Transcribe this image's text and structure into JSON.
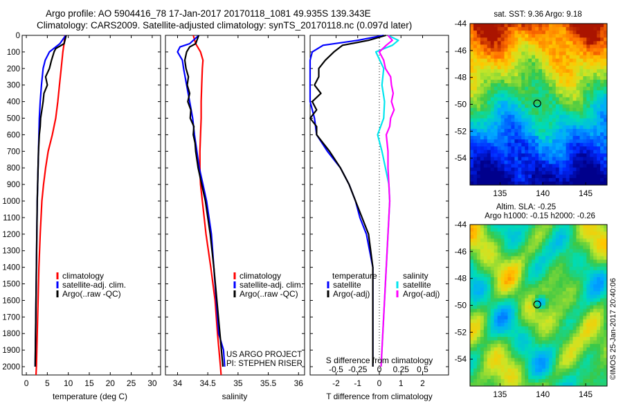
{
  "header": {
    "line1": "Argo profile: AO 5904416_78 17-Jan-2017 20170118_1081 49.935S 139.343E",
    "line2": "Climatology: CARS2009. Satellite-adjusted climatology: synTS_20170118.nc (0.097d later)"
  },
  "colors": {
    "climatology": "#ff0000",
    "satellite": "#0000ff",
    "argo": "#000000",
    "argo_salinity_diff": "#ff00ff",
    "satellite_salinity_diff": "#00e5ee"
  },
  "chart_data": [
    {
      "type": "line",
      "panel": "temperature",
      "xlabel": "temperature (deg C)",
      "xlim": [
        -1,
        32
      ],
      "xticks": [
        "0",
        "5",
        "10",
        "15",
        "20",
        "25",
        "30"
      ],
      "ylim": [
        0,
        2050
      ],
      "yticks": [
        "0",
        "100",
        "200",
        "300",
        "400",
        "500",
        "600",
        "700",
        "800",
        "900",
        "1000",
        "1100",
        "1200",
        "1300",
        "1400",
        "1500",
        "1600",
        "1700",
        "1800",
        "1900",
        "2000"
      ],
      "legend": [
        "climatology",
        "satellite-adj. clim.",
        "Argo(..raw -QC)"
      ],
      "series": [
        {
          "name": "climatology",
          "depth": [
            0,
            50,
            100,
            200,
            300,
            400,
            500,
            600,
            700,
            800,
            900,
            1000,
            1200,
            1400,
            1600,
            1800,
            2000,
            2050
          ],
          "values": [
            9.2,
            9.0,
            8.7,
            8.3,
            7.9,
            7.5,
            7.0,
            6.2,
            5.2,
            4.6,
            4.1,
            3.7,
            3.3,
            3.0,
            2.8,
            2.6,
            2.4,
            2.3
          ]
        },
        {
          "name": "satellite-adj. clim.",
          "depth": [
            0,
            50,
            100,
            150,
            200,
            300,
            400,
            500,
            600,
            700,
            800,
            900,
            1000,
            1200,
            1400,
            1600,
            1800,
            2000
          ],
          "values": [
            9.4,
            8.0,
            5.5,
            4.5,
            4.0,
            3.6,
            3.3,
            3.1,
            3.0,
            2.9,
            2.8,
            2.7,
            2.6,
            2.5,
            2.4,
            2.3,
            2.2,
            2.1
          ]
        },
        {
          "name": "Argo(..raw -QC)",
          "depth": [
            0,
            50,
            80,
            100,
            150,
            200,
            250,
            300,
            350,
            400,
            450,
            500,
            550,
            600,
            700,
            800,
            900,
            1000,
            1200,
            1400,
            1600,
            1800,
            2000
          ],
          "values": [
            9.5,
            9.0,
            7.0,
            6.6,
            6.0,
            5.5,
            4.6,
            5.0,
            4.2,
            4.0,
            3.7,
            3.4,
            3.3,
            3.1,
            2.9,
            2.8,
            2.7,
            2.6,
            2.5,
            2.4,
            2.3,
            2.2,
            2.1
          ]
        }
      ]
    },
    {
      "type": "line",
      "panel": "salinity",
      "xlabel": "salinity",
      "xlim": [
        33.8,
        36.1
      ],
      "xticks": [
        "34",
        "34.5",
        "35",
        "35.5",
        "36"
      ],
      "ylim": [
        0,
        2050
      ],
      "legend": [
        "climatology",
        "satellite-adj. clim.",
        "Argo(..raw -QC)"
      ],
      "annotation": [
        "US ARGO PROJECT",
        "PI: STEPHEN RISER"
      ],
      "series": [
        {
          "name": "climatology",
          "depth": [
            0,
            50,
            100,
            150,
            200,
            300,
            400,
            500,
            600,
            700,
            800,
            900,
            1000,
            1200,
            1400,
            1600,
            1800,
            2000,
            2050
          ],
          "values": [
            34.26,
            34.3,
            34.38,
            34.42,
            34.41,
            34.4,
            34.39,
            34.39,
            34.38,
            34.37,
            34.37,
            34.38,
            34.41,
            34.47,
            34.55,
            34.62,
            34.66,
            34.71,
            34.72
          ]
        },
        {
          "name": "satellite-adj. clim.",
          "depth": [
            0,
            50,
            70,
            100,
            150,
            200,
            300,
            400,
            500,
            600,
            700,
            800,
            900,
            1000,
            1100,
            1200,
            1400,
            1600,
            1800,
            1900,
            2000
          ],
          "values": [
            34.35,
            34.2,
            34.04,
            34.0,
            34.08,
            34.1,
            34.15,
            34.2,
            34.25,
            34.28,
            34.32,
            34.36,
            34.42,
            34.48,
            34.52,
            34.56,
            34.6,
            34.64,
            34.68,
            34.76,
            34.78
          ]
        },
        {
          "name": "Argo(..raw -QC)",
          "depth": [
            0,
            50,
            70,
            100,
            150,
            200,
            250,
            300,
            350,
            400,
            450,
            500,
            550,
            600,
            650,
            700,
            800,
            900,
            1000,
            1200,
            1400,
            1600,
            1800,
            2000
          ],
          "values": [
            34.35,
            34.3,
            34.2,
            34.15,
            34.12,
            34.14,
            34.18,
            34.16,
            34.2,
            34.17,
            34.22,
            34.21,
            34.27,
            34.26,
            34.29,
            34.3,
            34.34,
            34.4,
            34.46,
            34.54,
            34.6,
            34.65,
            34.7,
            34.75
          ]
        }
      ]
    },
    {
      "type": "line",
      "panel": "differences",
      "xlabel": "T difference from climatology",
      "xlabel_top": "S difference from climatology",
      "xlim": [
        -3.2,
        3.2
      ],
      "xticks": [
        "-2",
        "-1",
        "0",
        "1",
        "2"
      ],
      "xticks_top": [
        "-0.5",
        "-0.25",
        "0",
        "0.25",
        "0.5"
      ],
      "ylim": [
        0,
        2050
      ],
      "legend": {
        "temperature_title": "temperature",
        "salinity_title": "salinity",
        "temperature": [
          "satellite",
          "Argo(-adj)"
        ],
        "salinity": [
          "satellite",
          "Argo(-adj)"
        ]
      },
      "series": [
        {
          "name": "temperature satellite",
          "depth": [
            0,
            30,
            60,
            100,
            150,
            200,
            300,
            400,
            500,
            600,
            700,
            800,
            900,
            1000,
            1100,
            1200,
            1400,
            1600,
            1800,
            2000
          ],
          "values": [
            0.2,
            -1.0,
            -2.6,
            -3.1,
            -3.2,
            -3.2,
            -3.2,
            -3.2,
            -3.0,
            -2.9,
            -2.4,
            -1.8,
            -1.4,
            -1.1,
            -0.9,
            -0.6,
            -0.3,
            -0.3,
            -0.3,
            -0.3
          ]
        },
        {
          "name": "temperature Argo(-adj)",
          "depth": [
            0,
            30,
            60,
            100,
            150,
            200,
            250,
            300,
            350,
            400,
            450,
            500,
            550,
            600,
            700,
            800,
            900,
            1000,
            1100,
            1200,
            1400,
            1600,
            1800,
            2000
          ],
          "values": [
            0.3,
            -0.5,
            -1.7,
            -2.1,
            -2.5,
            -2.8,
            -2.8,
            -3.0,
            -2.7,
            -3.1,
            -2.9,
            -3.2,
            -2.9,
            -2.9,
            -2.3,
            -1.8,
            -1.4,
            -1.1,
            -0.8,
            -0.5,
            -0.3,
            -0.3,
            -0.3,
            -0.3
          ]
        },
        {
          "name": "salinity satellite",
          "depth": [
            0,
            30,
            60,
            100,
            200,
            300,
            400,
            500,
            600,
            700,
            800,
            900,
            1000,
            1200,
            1400,
            1600,
            1800,
            2000
          ],
          "values": [
            0.1,
            0.22,
            0.15,
            -0.04,
            0.05,
            0.03,
            0.06,
            0.05,
            -0.02,
            0.03,
            0.07,
            0.11,
            0.12,
            0.1,
            0.08,
            0.06,
            0.04,
            0.02
          ]
        },
        {
          "name": "salinity Argo(-adj)",
          "depth": [
            0,
            30,
            60,
            100,
            150,
            200,
            250,
            300,
            350,
            400,
            450,
            500,
            550,
            600,
            700,
            800,
            900,
            1000,
            1200,
            1400,
            1600,
            1800,
            2000
          ],
          "values": [
            0.1,
            0.15,
            0.08,
            0.0,
            0.05,
            0.07,
            0.13,
            0.14,
            0.16,
            0.14,
            0.17,
            0.13,
            0.12,
            0.08,
            0.1,
            0.1,
            0.11,
            0.12,
            0.1,
            0.08,
            0.06,
            0.04,
            0.02
          ]
        }
      ]
    },
    {
      "type": "heatmap",
      "panel": "sst_map",
      "title": "sat. SST: 9.36 Argo: 9.18",
      "xlim": [
        131.5,
        147.5
      ],
      "ylim": [
        -56,
        -44
      ],
      "xticks": [
        "135",
        "140",
        "145"
      ],
      "yticks": [
        "-44",
        "-46",
        "-48",
        "-50",
        "-52",
        "-54"
      ],
      "marker": {
        "lon": 139.343,
        "lat": -49.935
      }
    },
    {
      "type": "heatmap",
      "panel": "sla_map",
      "title_line1": "Altim. SLA: -0.25",
      "title_line2": "Argo h1000: -0.15 h2000: -0.26",
      "xlim": [
        131.5,
        147.5
      ],
      "ylim": [
        -56,
        -44
      ],
      "xticks": [
        "135",
        "140",
        "145"
      ],
      "yticks": [
        "-44",
        "-46",
        "-48",
        "-50",
        "-52",
        "-54"
      ],
      "marker": {
        "lon": 139.343,
        "lat": -49.935
      }
    }
  ],
  "credit": "©IMOS 25-Jan-2017 20:40:06"
}
